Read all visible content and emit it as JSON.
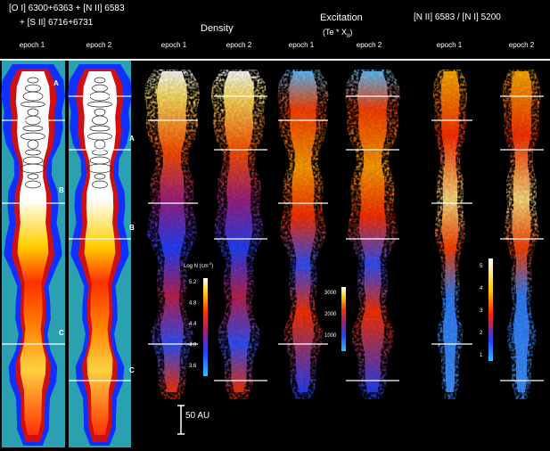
{
  "headers": {
    "oi_line1": "[O I] 6300+6363 + [N II] 6583",
    "oi_line2": "+ [S II] 6716+6731",
    "density": "Density",
    "excitation_line1": "Excitation",
    "excitation_line2": "(Te * X",
    "excitation_sub": "II",
    "excitation_close": ")",
    "ratio": "[N II] 6583 / [N I] 5200"
  },
  "epochs": [
    "epoch 1",
    "epoch 2",
    "epoch 1",
    "epoch 2",
    "epoch 1",
    "epoch 2",
    "epoch 1",
    "epoch 2"
  ],
  "knot_labels": [
    "A",
    "B",
    "C",
    "A",
    "B",
    "C"
  ],
  "colorbars": {
    "density": {
      "title": "Log N (cm",
      "title_sup": "-3",
      "title_close": ")",
      "ticks": [
        "5.2",
        "4.8",
        "4.4",
        "4.0",
        "3.6"
      ]
    },
    "excitation": {
      "ticks": [
        "3000",
        "2000",
        "1000"
      ]
    },
    "ratio": {
      "ticks": [
        "5",
        "4",
        "3",
        "2",
        "1"
      ]
    }
  },
  "scale_bar": "50 AU",
  "colors": {
    "background": "#000000",
    "cyan_bg": "#2aa0b0",
    "density_low": "#1a3cff",
    "density_high": "#ffffff",
    "hot": "#ff2a00",
    "warm": "#ffb800"
  }
}
